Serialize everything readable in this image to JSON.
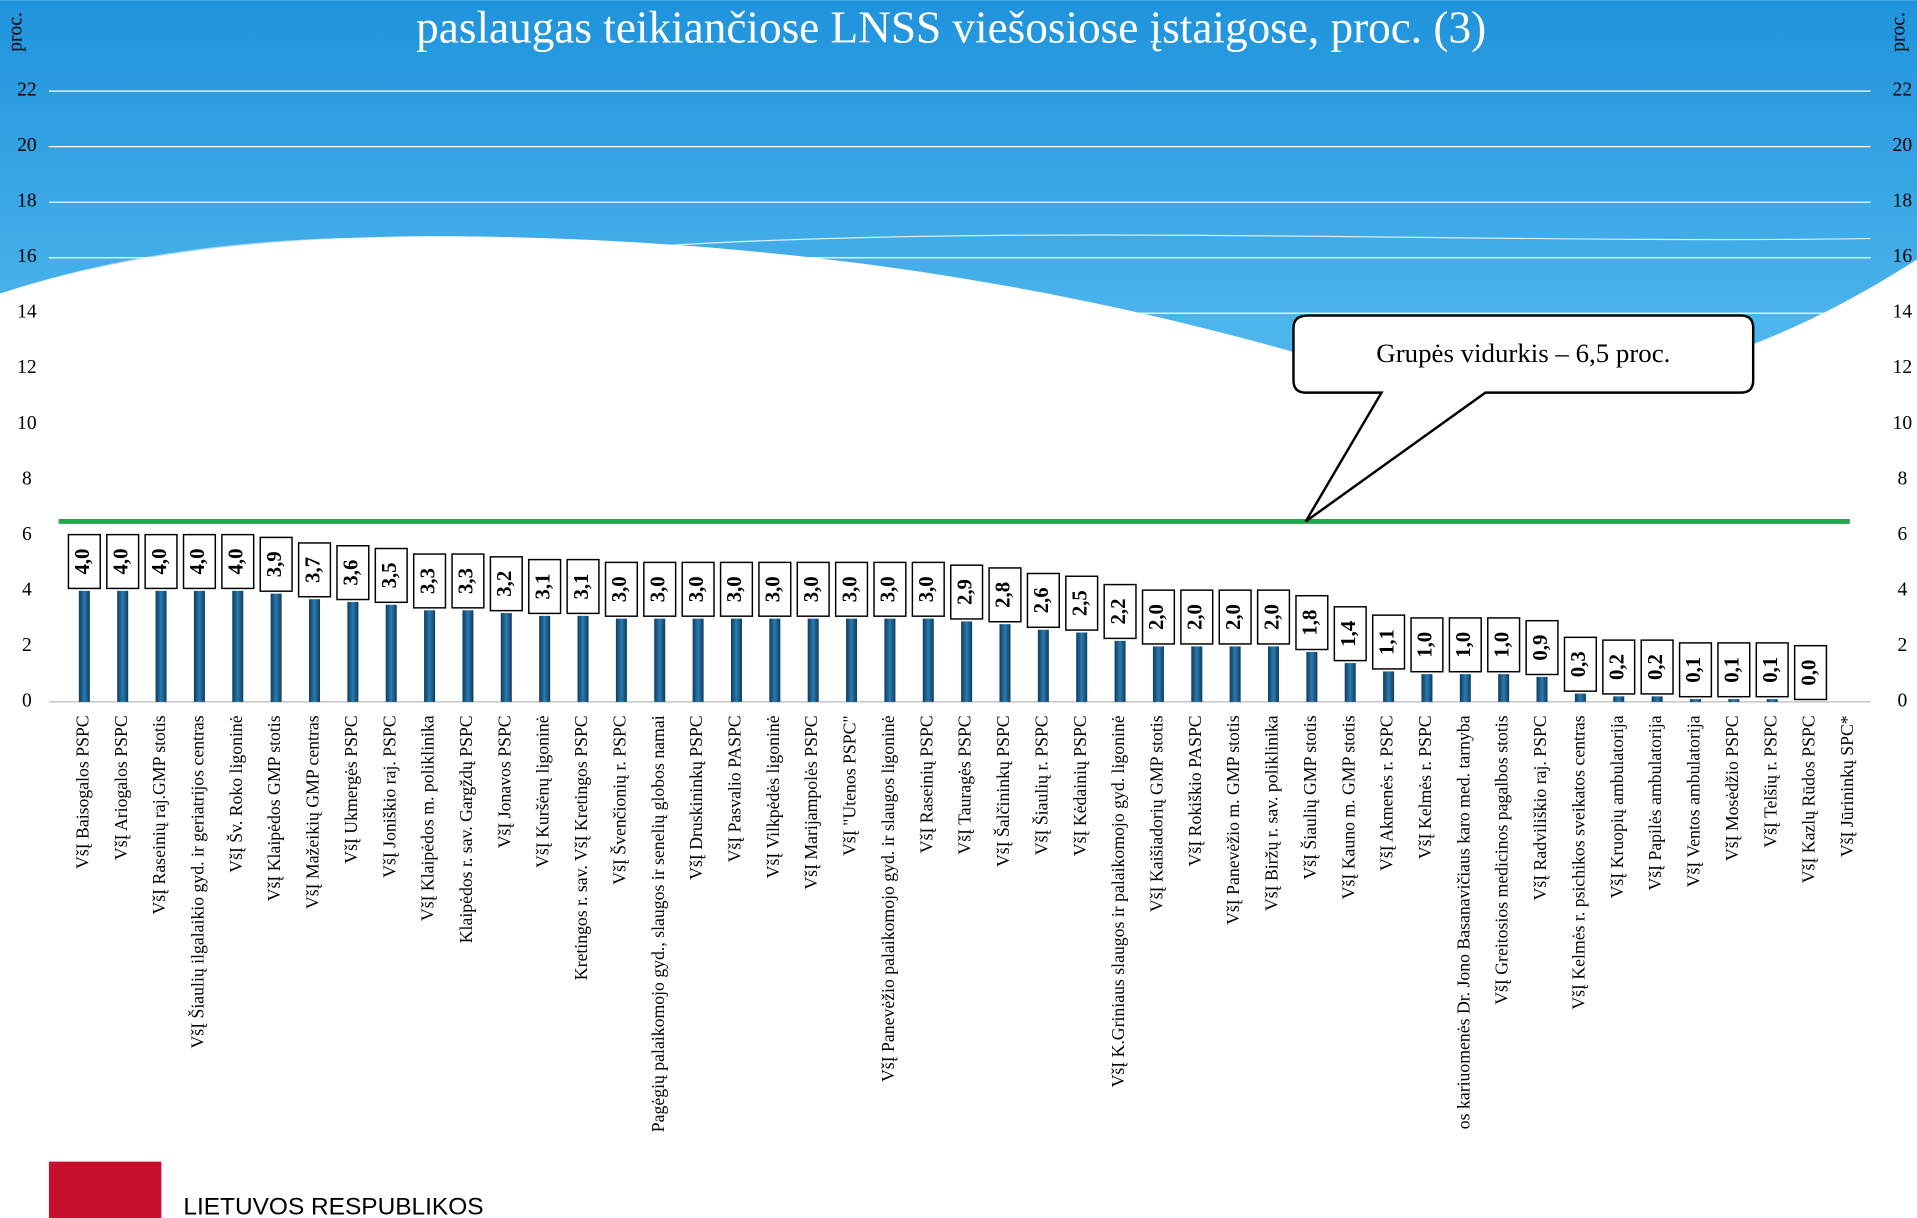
{
  "chart_data": {
    "type": "bar",
    "title": "paslaugas teikiančiose LNSS viešosiose įstaigose, proc. (3)",
    "y_label": "proc.",
    "categories": [
      "VšĮ Baisogalos PSPC",
      "VšĮ Ariogalos PSPC",
      "VšĮ Raseinių raj.GMP stotis",
      "VšĮ Šiaulių ilgalaikio gyd. ir geriatrijos centras",
      "VšĮ Šv. Roko ligoninė",
      "VšĮ Klaipėdos GMP stotis",
      "VšĮ Mažeikių GMP centras",
      "VšĮ Ukmergės PSPC",
      "VšĮ Joniškio raj. PSPC",
      "VšĮ Klaipėdos m. poliklinika",
      "Klaipėdos r. sav. Gargždų PSPC",
      "VšĮ Jonavos PSPC",
      "VšĮ Kuršėnų ligoninė",
      "Kretingos r. sav. VšĮ Kretingos PSPC",
      "VšĮ Švenčionių r. PSPC",
      "Pagėgių palaikomojo gyd., slaugos ir senelių globos namai",
      "VšĮ Druskininkų PSPC",
      "VšĮ Pasvalio PASPC",
      "VšĮ Vilkpėdės ligoninė",
      "VšĮ Marijampolės PSPC",
      "VšĮ \"Utenos PSPC\"",
      "VšĮ Panevėžio palaikomojo gyd. ir slaugos ligoninė",
      "VšĮ Raseinių PSPC",
      "VšĮ Tauragės PSPC",
      "VšĮ Šalčininkų PSPC",
      "VšĮ Šiaulių r. PSPC",
      "VšĮ Kėdainių PSPC",
      "VšĮ K.Griniaus slaugos ir palaikomojo gyd. ligoninė",
      "VšĮ Kaišiadorių GMP stotis",
      "VšĮ Rokiškio PASPC",
      "VšĮ Panevėžio m. GMP stotis",
      "VšĮ Biržų r. sav. poliklinika",
      "VšĮ Šiaulių GMP stotis",
      "VšĮ Kauno m. GMP stotis",
      "VšĮ Akmenės r. PSPC",
      "VšĮ Kelmės r. PSPC",
      "os kariuomenės Dr. Jono Basanavičiaus karo med. tarnyba",
      "VšĮ Greitosios medicinos pagalbos stotis",
      "VšĮ Radviliškio raj. PSPC",
      "VšĮ Kelmės r. psichikos sveikatos centras",
      "VšĮ Kruopių ambulatorija",
      "VšĮ Papilės ambulatorija",
      "VšĮ Ventos ambulatorija",
      "VšĮ Mosėdžio PSPC",
      "VšĮ Telšių r. PSPC",
      "VšĮ Kazlų Rūdos PSPC",
      "VšĮ Jūrininkų SPC*"
    ],
    "values": [
      4.0,
      4.0,
      4.0,
      4.0,
      4.0,
      3.9,
      3.7,
      3.6,
      3.5,
      3.3,
      3.3,
      3.2,
      3.1,
      3.1,
      3.0,
      3.0,
      3.0,
      3.0,
      3.0,
      3.0,
      3.0,
      3.0,
      3.0,
      2.9,
      2.8,
      2.6,
      2.5,
      2.2,
      2.0,
      2.0,
      2.0,
      2.0,
      1.8,
      1.4,
      1.1,
      1.0,
      1.0,
      1.0,
      0.9,
      0.3,
      0.2,
      0.2,
      0.1,
      0.1,
      0.1,
      0.0,
      null
    ],
    "value_labels": [
      "4,0",
      "4,0",
      "4,0",
      "4,0",
      "4,0",
      "3,9",
      "3,7",
      "3,6",
      "3,5",
      "3,3",
      "3,3",
      "3,2",
      "3,1",
      "3,1",
      "3,0",
      "3,0",
      "3,0",
      "3,0",
      "3,0",
      "3,0",
      "3,0",
      "3,0",
      "3,0",
      "2,9",
      "2,8",
      "2,6",
      "2,5",
      "2,2",
      "2,0",
      "2,0",
      "2,0",
      "2,0",
      "1,8",
      "1,4",
      "1,1",
      "1,0",
      "1,0",
      "1,0",
      "0,9",
      "0,3",
      "0,2",
      "0,2",
      "0,1",
      "0,1",
      "0,1",
      "0,0",
      null
    ],
    "color": "#1d5a86",
    "mean": 6.5,
    "mean_color": "#1fa84a",
    "mean_annotation": "Grupės vidurkis – 6,5 proc.",
    "ylim": [
      0,
      24
    ],
    "yticks": [
      0,
      2,
      4,
      6,
      8,
      10,
      12,
      14,
      16,
      18,
      20,
      22
    ],
    "grid": true
  },
  "footer": {
    "text": "LIETUVOS RESPUBLIKOS"
  }
}
